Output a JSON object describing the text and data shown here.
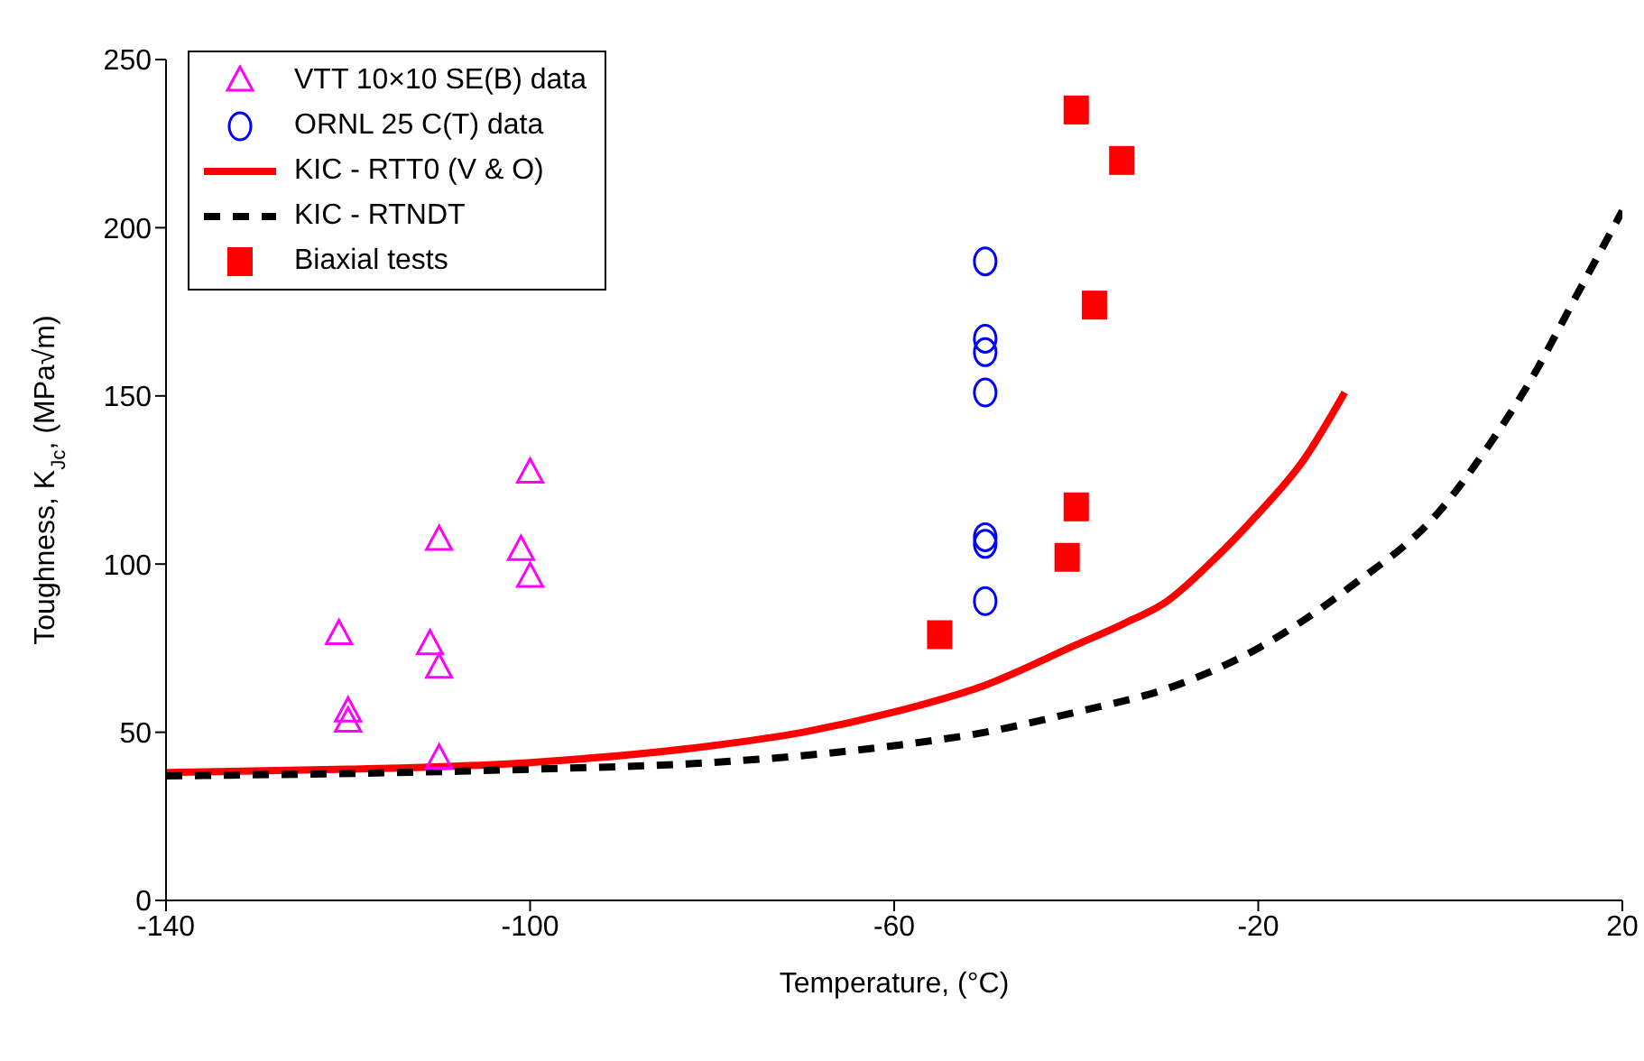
{
  "chart_data": {
    "type": "scatter",
    "xlabel": "Temperature, (°C)",
    "ylabel": "Toughness, K$_{Jc}$, (MPa√m)",
    "xlim": [
      -140,
      20
    ],
    "xticks": [
      -140,
      -100,
      -60,
      -20,
      20
    ],
    "ylim": [
      0,
      250
    ],
    "yticks": [
      0,
      50,
      100,
      150,
      200,
      250
    ],
    "grid": false,
    "legend": "top left",
    "series": [
      {
        "name": "VTT 10×10 SE(B) data",
        "marker": "triangle",
        "color": "#ff00ff",
        "x": [
          -121,
          -120,
          -120,
          -110,
          -111,
          -110,
          -110,
          -100,
          -101,
          -100
        ],
        "values": [
          79,
          56,
          53,
          107,
          76,
          69,
          42,
          127,
          104,
          96
        ]
      },
      {
        "name": "ORNL 25 C(T) data",
        "marker": "circle",
        "color": "#0000ff",
        "x": [
          -50,
          -50,
          -50,
          -50,
          -50,
          -50,
          -50
        ],
        "values": [
          190,
          167,
          163,
          151,
          108,
          106,
          89
        ]
      },
      {
        "name": "KIC - RTT0 (V & O)",
        "type": "line",
        "line_style": "solid",
        "color": "#ff0000",
        "x": [
          -140,
          -120,
          -100,
          -80,
          -70,
          -60,
          -50,
          -40,
          -35,
          -30,
          -25,
          -20,
          -15,
          -10.5
        ],
        "values": [
          38,
          39,
          41,
          46,
          50,
          56,
          64,
          76,
          82,
          89,
          101,
          115,
          131,
          151
        ]
      },
      {
        "name": "KIC - RTNDT",
        "type": "line",
        "line_style": "dashed",
        "color": "#000000",
        "x": [
          -140,
          -100,
          -80,
          -60,
          -50,
          -40,
          -30,
          -20,
          -10,
          0,
          5,
          10,
          15,
          20
        ],
        "values": [
          37,
          39,
          41,
          46,
          50,
          56,
          63,
          75,
          93,
          116,
          134,
          155,
          180,
          205
        ]
      },
      {
        "name": "Biaxial tests",
        "marker": "square",
        "color": "#ff0000",
        "x": [
          -40,
          -35,
          -38,
          -40,
          -41,
          -55
        ],
        "values": [
          235,
          220,
          177,
          117,
          102,
          79
        ]
      }
    ]
  }
}
